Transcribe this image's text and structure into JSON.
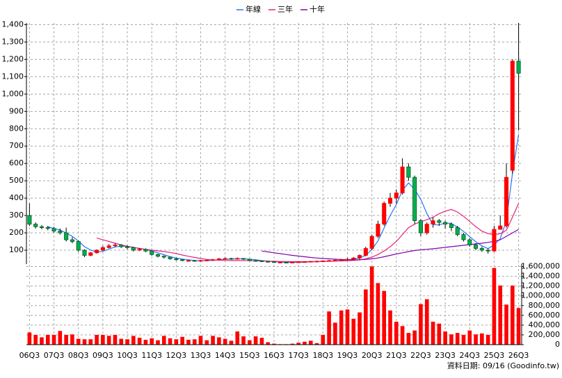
{
  "chart_data": {
    "type": "candlestick",
    "categories": [
      "06Q3",
      null,
      null,
      null,
      "07Q3",
      null,
      null,
      null,
      "08Q3",
      null,
      null,
      null,
      "09Q3",
      null,
      null,
      null,
      "10Q3",
      null,
      null,
      null,
      "11Q3",
      null,
      null,
      null,
      "12Q3",
      null,
      null,
      null,
      "13Q3",
      null,
      null,
      null,
      "14Q3",
      null,
      null,
      null,
      "15Q3",
      null,
      null,
      null,
      "16Q3",
      null,
      null,
      null,
      "17Q3",
      null,
      null,
      null,
      "18Q3",
      null,
      null,
      null,
      "19Q3",
      null,
      null,
      null,
      "20Q3",
      null,
      null,
      null,
      "21Q3",
      null,
      null,
      null,
      "22Q3",
      null,
      null,
      null,
      "23Q3",
      null,
      null,
      null,
      "24Q3",
      null,
      null,
      null,
      "25Q3",
      null,
      null,
      null,
      "26Q3"
    ],
    "open": [
      300,
      250,
      235,
      230,
      225,
      210,
      200,
      160,
      150,
      100,
      70,
      85,
      100,
      115,
      125,
      130,
      120,
      115,
      100,
      105,
      95,
      75,
      65,
      60,
      50,
      45,
      40,
      40,
      38,
      40,
      42,
      45,
      50,
      52,
      50,
      52,
      48,
      40,
      38,
      35,
      33,
      30,
      30,
      28,
      30,
      32,
      33,
      35,
      36,
      38,
      40,
      42,
      45,
      48,
      55,
      70,
      110,
      180,
      250,
      370,
      400,
      430,
      580,
      520,
      270,
      200,
      250,
      270,
      260,
      250,
      230,
      190,
      160,
      130,
      110,
      100,
      95,
      220,
      240,
      560,
      1190
    ],
    "high": [
      370,
      260,
      245,
      240,
      235,
      225,
      230,
      175,
      155,
      105,
      90,
      105,
      125,
      135,
      140,
      135,
      128,
      120,
      112,
      110,
      98,
      80,
      70,
      62,
      55,
      48,
      46,
      44,
      44,
      46,
      50,
      55,
      58,
      56,
      58,
      55,
      50,
      44,
      40,
      38,
      35,
      34,
      32,
      33,
      35,
      36,
      38,
      40,
      42,
      44,
      46,
      50,
      55,
      60,
      75,
      120,
      190,
      270,
      380,
      430,
      450,
      630,
      600,
      530,
      280,
      260,
      290,
      280,
      270,
      260,
      240,
      200,
      170,
      140,
      120,
      110,
      240,
      300,
      600,
      1200,
      1410
    ],
    "low": [
      240,
      225,
      220,
      215,
      200,
      190,
      150,
      140,
      90,
      60,
      65,
      80,
      95,
      110,
      118,
      112,
      105,
      92,
      95,
      88,
      68,
      58,
      52,
      45,
      40,
      36,
      36,
      34,
      35,
      37,
      40,
      42,
      46,
      45,
      46,
      44,
      36,
      34,
      31,
      29,
      27,
      27,
      25,
      26,
      28,
      29,
      30,
      32,
      33,
      34,
      36,
      38,
      40,
      44,
      45,
      65,
      100,
      170,
      240,
      350,
      370,
      420,
      500,
      250,
      180,
      190,
      230,
      240,
      225,
      210,
      180,
      150,
      120,
      100,
      90,
      80,
      90,
      220,
      230,
      540,
      790
    ],
    "close": [
      250,
      235,
      230,
      225,
      210,
      200,
      160,
      150,
      100,
      70,
      85,
      100,
      115,
      125,
      130,
      120,
      115,
      100,
      105,
      95,
      75,
      65,
      60,
      50,
      45,
      40,
      40,
      38,
      40,
      42,
      45,
      50,
      52,
      50,
      52,
      48,
      40,
      38,
      35,
      33,
      30,
      30,
      28,
      30,
      32,
      33,
      35,
      36,
      38,
      40,
      42,
      45,
      48,
      55,
      70,
      110,
      180,
      250,
      370,
      400,
      430,
      580,
      520,
      270,
      200,
      250,
      270,
      260,
      250,
      230,
      190,
      160,
      130,
      110,
      100,
      95,
      220,
      240,
      520,
      1190,
      1120
    ],
    "up_color": "#ff0000",
    "down_color": "#00b050",
    "ylim": [
      20,
      1410
    ],
    "yticks": [
      100,
      200,
      300,
      400,
      500,
      600,
      700,
      800,
      900,
      {
        "value": 1000,
        "label": "1,000"
      },
      {
        "value": 1100,
        "label": "1,100"
      },
      {
        "value": 1200,
        "label": "1,200"
      },
      {
        "value": 1300,
        "label": "1,300"
      },
      {
        "value": 1400,
        "label": "1,400"
      }
    ],
    "grid": true,
    "legend": "top",
    "series": [
      {
        "name": "年線",
        "color": "#1e78ff",
        "values": [
          null,
          null,
          null,
          235,
          225,
          216,
          199,
          180,
          153,
          120,
          101,
          89,
          93,
          106,
          119,
          123,
          123,
          116,
          110,
          104,
          95,
          85,
          74,
          63,
          55,
          49,
          44,
          41,
          40,
          40,
          41,
          44,
          47,
          49,
          51,
          51,
          48,
          45,
          40,
          37,
          34,
          32,
          30,
          30,
          30,
          31,
          33,
          34,
          36,
          37,
          39,
          41,
          44,
          48,
          55,
          70,
          104,
          153,
          228,
          300,
          363,
          445,
          488,
          450,
          393,
          310,
          248,
          245,
          258,
          253,
          233,
          208,
          178,
          148,
          125,
          109,
          131,
          166,
          269,
          543,
          768
        ]
      },
      {
        "name": "三年",
        "color": "#e8207a",
        "values": [
          null,
          null,
          null,
          null,
          null,
          null,
          null,
          null,
          null,
          null,
          null,
          170,
          160,
          150,
          140,
          130,
          122,
          115,
          110,
          105,
          100,
          96,
          92,
          87,
          80,
          72,
          65,
          58,
          52,
          47,
          44,
          42,
          41,
          40,
          40,
          40,
          40,
          39,
          38,
          37,
          36,
          35,
          35,
          34,
          34,
          34,
          34,
          35,
          35,
          36,
          37,
          38,
          39,
          41,
          44,
          50,
          60,
          75,
          95,
          120,
          150,
          190,
          230,
          250,
          265,
          275,
          290,
          310,
          325,
          335,
          320,
          295,
          265,
          235,
          210,
          195,
          190,
          195,
          215,
          290,
          370
        ]
      },
      {
        "name": "十年",
        "color": "#8000b0",
        "values": [
          null,
          null,
          null,
          null,
          null,
          null,
          null,
          null,
          null,
          null,
          null,
          null,
          null,
          null,
          null,
          null,
          null,
          null,
          null,
          null,
          null,
          null,
          null,
          null,
          null,
          null,
          null,
          null,
          null,
          null,
          null,
          null,
          null,
          null,
          null,
          null,
          null,
          null,
          95,
          90,
          85,
          80,
          75,
          70,
          66,
          62,
          58,
          55,
          52,
          50,
          48,
          46,
          45,
          44,
          45,
          47,
          50,
          55,
          62,
          70,
          78,
          85,
          92,
          98,
          102,
          105,
          108,
          112,
          116,
          120,
          124,
          128,
          132,
          136,
          140,
          145,
          150,
          160,
          180,
          200,
          220
        ]
      }
    ],
    "volume": {
      "color": "#ff0000",
      "values": [
        250000,
        200000,
        150000,
        200000,
        200000,
        280000,
        200000,
        210000,
        120000,
        110000,
        110000,
        200000,
        200000,
        180000,
        200000,
        120000,
        110000,
        180000,
        140000,
        100000,
        130000,
        90000,
        180000,
        130000,
        110000,
        160000,
        100000,
        110000,
        180000,
        90000,
        180000,
        150000,
        120000,
        80000,
        270000,
        170000,
        90000,
        170000,
        140000,
        50000,
        20000,
        10000,
        10000,
        20000,
        40000,
        60000,
        80000,
        30000,
        200000,
        680000,
        450000,
        700000,
        720000,
        530000,
        660000,
        1130000,
        1600000,
        1260000,
        1100000,
        700000,
        470000,
        380000,
        240000,
        290000,
        830000,
        930000,
        470000,
        430000,
        270000,
        210000,
        240000,
        200000,
        290000,
        210000,
        230000,
        200000,
        1570000,
        1210000,
        820000,
        1210000,
        750000
      ],
      "ylim": [
        0,
        1650000
      ],
      "yticks": [
        0,
        {
          "value": 200000,
          "label": "200,000"
        },
        {
          "value": 400000,
          "label": "400,000"
        },
        {
          "value": 600000,
          "label": "600,000"
        },
        {
          "value": 800000,
          "label": "800,000"
        },
        {
          "value": 1000000,
          "label": "1,000,000"
        },
        {
          "value": 1200000,
          "label": "1,200,000"
        },
        {
          "value": 1400000,
          "label": "1,400,000"
        },
        {
          "value": 1600000,
          "label": "1,600,000"
        }
      ]
    },
    "footer": "資料日期: 09/16 (Goodinfo.tw)"
  }
}
